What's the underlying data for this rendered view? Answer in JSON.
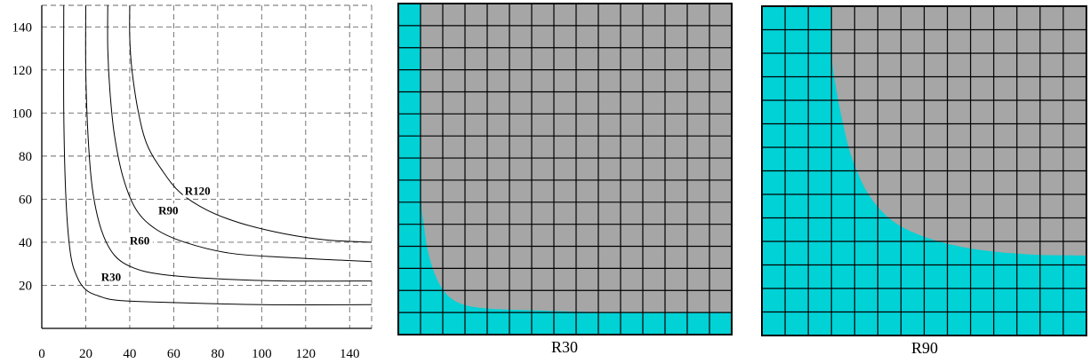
{
  "chart_data": [
    {
      "type": "line",
      "title": "",
      "xlabel": "",
      "ylabel": "",
      "xlim": [
        0,
        150
      ],
      "ylim": [
        0,
        150
      ],
      "x_ticks": [
        0,
        20,
        40,
        60,
        80,
        100,
        120,
        140
      ],
      "y_ticks": [
        20,
        40,
        60,
        80,
        100,
        120,
        140
      ],
      "grid": true,
      "grid_style": "dashed",
      "series": [
        {
          "name": "R30",
          "label_at": [
            27,
            22
          ],
          "points": [
            [
              10,
              150
            ],
            [
              10,
              100
            ],
            [
              11,
              60
            ],
            [
              13,
              35
            ],
            [
              16,
              24
            ],
            [
              20,
              18
            ],
            [
              26,
              15
            ],
            [
              35,
              13
            ],
            [
              60,
              12
            ],
            [
              100,
              11
            ],
            [
              150,
              11
            ]
          ]
        },
        {
          "name": "R60",
          "label_at": [
            40,
            39
          ],
          "points": [
            [
              20,
              150
            ],
            [
              20,
              120
            ],
            [
              21,
              90
            ],
            [
              23,
              65
            ],
            [
              27,
              46
            ],
            [
              33,
              34
            ],
            [
              42,
              28
            ],
            [
              55,
              25
            ],
            [
              80,
              23
            ],
            [
              110,
              22
            ],
            [
              150,
              22
            ]
          ]
        },
        {
          "name": "R90",
          "label_at": [
            53,
            53
          ],
          "points": [
            [
              30,
              150
            ],
            [
              30,
              130
            ],
            [
              31,
              110
            ],
            [
              33,
              90
            ],
            [
              37,
              70
            ],
            [
              43,
              55
            ],
            [
              52,
              46
            ],
            [
              65,
              40
            ],
            [
              85,
              35
            ],
            [
              110,
              33
            ],
            [
              150,
              31
            ]
          ]
        },
        {
          "name": "R120",
          "label_at": [
            65,
            62
          ],
          "points": [
            [
              40,
              150
            ],
            [
              40,
              135
            ],
            [
              41,
              120
            ],
            [
              44,
              100
            ],
            [
              48,
              85
            ],
            [
              55,
              73
            ],
            [
              63,
              63
            ],
            [
              75,
              55
            ],
            [
              90,
              49
            ],
            [
              110,
              44
            ],
            [
              130,
              41
            ],
            [
              150,
              40
            ]
          ]
        }
      ]
    },
    {
      "type": "heatmap",
      "caption": "R30",
      "grid_cells": [
        15,
        15
      ],
      "colors": {
        "background": "#00d2d6",
        "region": "#a6a6a6",
        "grid_line": "#000000"
      },
      "boundary": [
        [
          1,
          15
        ],
        [
          1,
          7
        ],
        [
          1.15,
          5
        ],
        [
          1.4,
          3.5
        ],
        [
          1.9,
          2.2
        ],
        [
          2.6,
          1.5
        ],
        [
          3.8,
          1.2
        ],
        [
          6,
          1.1
        ],
        [
          10,
          1
        ],
        [
          15,
          1
        ]
      ]
    },
    {
      "type": "heatmap",
      "caption": "R90",
      "grid_cells": [
        14,
        14
      ],
      "colors": {
        "background": "#00d2d6",
        "region": "#a6a6a6",
        "grid_line": "#000000"
      },
      "boundary": [
        [
          3,
          14
        ],
        [
          3,
          12
        ],
        [
          3.2,
          10.5
        ],
        [
          3.5,
          9
        ],
        [
          3.9,
          7.5
        ],
        [
          4.6,
          6
        ],
        [
          5.6,
          4.9
        ],
        [
          7,
          4.2
        ],
        [
          9,
          3.7
        ],
        [
          11.5,
          3.45
        ],
        [
          14,
          3.4
        ]
      ]
    }
  ]
}
